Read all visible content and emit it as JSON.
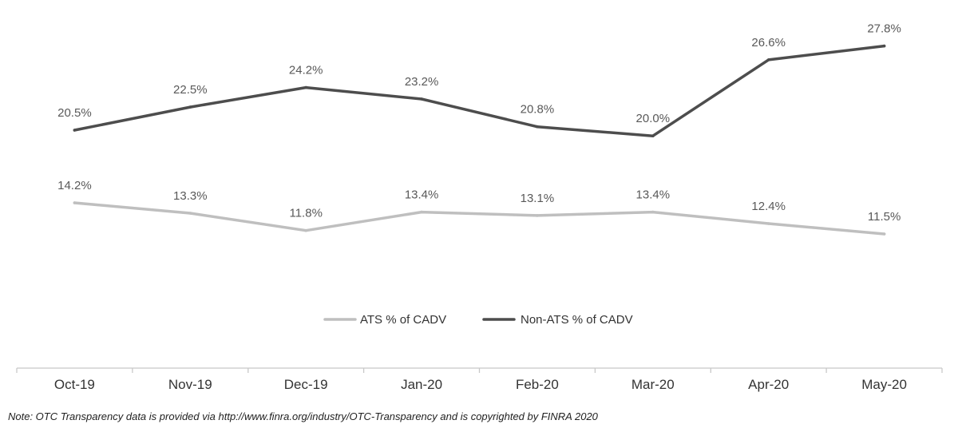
{
  "chart_data": {
    "type": "line",
    "categories": [
      "Oct-19",
      "Nov-19",
      "Dec-19",
      "Jan-20",
      "Feb-20",
      "Mar-20",
      "Apr-20",
      "May-20"
    ],
    "series": [
      {
        "name": "ATS % of CADV",
        "values": [
          14.2,
          13.3,
          11.8,
          13.4,
          13.1,
          13.4,
          12.4,
          11.5
        ],
        "labels": [
          "14.2%",
          "13.3%",
          "11.8%",
          "13.4%",
          "13.1%",
          "13.4%",
          "12.4%",
          "11.5%"
        ],
        "color": "#bfbfbf"
      },
      {
        "name": "Non-ATS % of CADV",
        "values": [
          20.5,
          22.5,
          24.2,
          23.2,
          20.8,
          20.0,
          26.6,
          27.8
        ],
        "labels": [
          "20.5%",
          "22.5%",
          "24.2%",
          "23.2%",
          "20.8%",
          "20.0%",
          "26.6%",
          "27.8%"
        ],
        "color": "#4d4d4d"
      }
    ],
    "legend_position": "bottom",
    "grid": false,
    "ylim": [
      0,
      30
    ]
  },
  "note": "Note:  OTC Transparency data is provided via http://www.finra.org/industry/OTC-Transparency and is copyrighted by FINRA 2020"
}
